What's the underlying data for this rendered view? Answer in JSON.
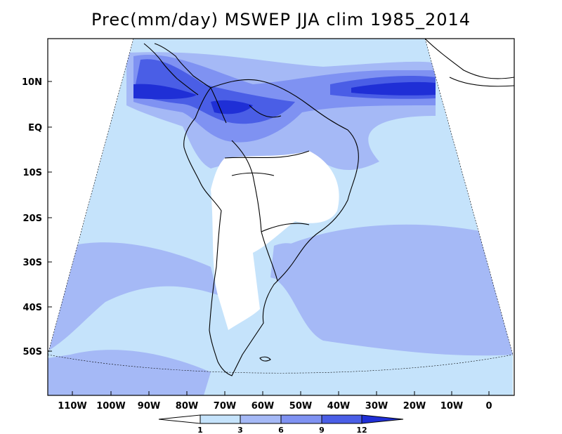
{
  "title": "Prec(mm/day) MSWEP JJA clim 1985_2014",
  "colors": {
    "c1": "#c5e3fb",
    "c3": "#a5b9f6",
    "c6": "#7f92f2",
    "c9": "#4a5ee6",
    "c12": "#1f2fd6",
    "outline": "#000000"
  },
  "lat_labels": [
    "10N",
    "EQ",
    "10S",
    "20S",
    "30S",
    "40S",
    "50S"
  ],
  "lon_labels": [
    "110W",
    "100W",
    "90W",
    "80W",
    "70W",
    "60W",
    "50W",
    "40W",
    "30W",
    "20W",
    "10W",
    "0"
  ],
  "colorbar": {
    "ticks": [
      "1",
      "3",
      "6",
      "9",
      "12"
    ],
    "colors": [
      "#ffffff",
      "#c5e3fb",
      "#a5b9f6",
      "#7f92f2",
      "#4a5ee6",
      "#1f2fd6"
    ]
  }
}
